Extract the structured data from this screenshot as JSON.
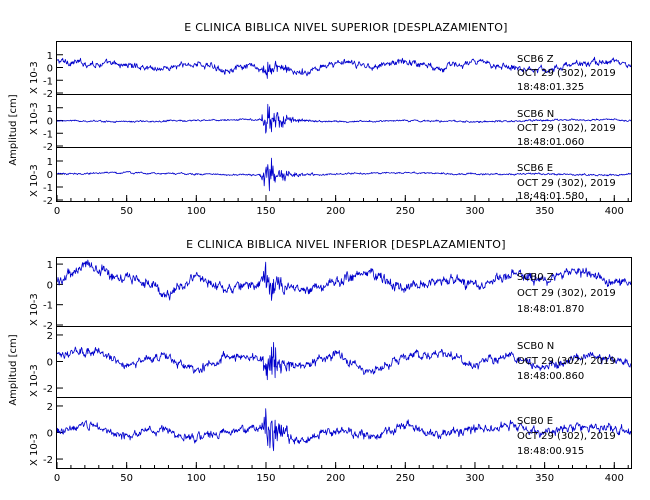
{
  "chart_data": [
    {
      "type": "line",
      "title": "E CLINICA BIBLICA NIVEL SUPERIOR [DESPLAZAMIENTO]",
      "ylabel": "Amplitud [cm]",
      "xlim": [
        0,
        412
      ],
      "xticks": [
        0,
        50,
        100,
        150,
        200,
        250,
        300,
        350,
        400
      ],
      "line_color": "#0000cc",
      "panels": [
        {
          "station": "SCB6   Z",
          "date": "OCT 29 (302), 2019",
          "time": "18:48:01.325",
          "scale": "X 10-3",
          "ylim": [
            -2,
            2
          ],
          "yticks": [
            1,
            0,
            -1,
            -2
          ],
          "style": "low-frequency",
          "event_peak": 0.9,
          "x": [
            0,
            25,
            50,
            75,
            100,
            125,
            140,
            150,
            160,
            175,
            200,
            225,
            250,
            275,
            300,
            325,
            350,
            375,
            400,
            412
          ],
          "y": [
            0.5,
            0.3,
            0.2,
            -0.1,
            0.3,
            -0.2,
            0.1,
            -0.3,
            0.2,
            -0.6,
            0.4,
            0.1,
            0.5,
            0.0,
            0.4,
            0.1,
            -0.2,
            0.3,
            0.5,
            0.1
          ]
        },
        {
          "station": "SCB6   N",
          "date": "OCT 29 (302), 2019",
          "time": "18:48:01.060",
          "scale": "X 10-3",
          "ylim": [
            -2,
            2
          ],
          "yticks": [
            1,
            0,
            -1,
            -2
          ],
          "style": "quiet",
          "event_peak": 1.8,
          "x": [
            0,
            50,
            100,
            150,
            200,
            250,
            300,
            350,
            400,
            412
          ],
          "y": [
            0.0,
            -0.1,
            0.0,
            0.1,
            -0.1,
            0.0,
            -0.1,
            0.0,
            0.1,
            0.0
          ]
        },
        {
          "station": "SCB6   E",
          "date": "OCT 29 (302), 2019",
          "time": "18:48:01.580",
          "scale": "X 10-3",
          "ylim": [
            -2,
            2
          ],
          "yticks": [
            1,
            0,
            -1,
            -2
          ],
          "style": "quiet",
          "event_peak": 1.8,
          "x": [
            0,
            50,
            100,
            150,
            200,
            250,
            300,
            350,
            400,
            412
          ],
          "y": [
            0.0,
            0.1,
            0.0,
            -0.1,
            0.0,
            0.1,
            0.0,
            0.0,
            -0.1,
            0.0
          ]
        }
      ]
    },
    {
      "type": "line",
      "title": "E CLINICA BIBLICA NIVEL INFERIOR [DESPLAZAMIENTO]",
      "ylabel": "Amplitud [cm]",
      "xlim": [
        0,
        412
      ],
      "xticks": [
        0,
        50,
        100,
        150,
        200,
        250,
        300,
        350,
        400
      ],
      "line_color": "#0000cc",
      "panels": [
        {
          "station": "SCB0   Z",
          "date": "OCT 29 (302), 2019",
          "time": "18:48:01.870",
          "scale": "X 10-3",
          "ylim": [
            -2,
            1.3
          ],
          "yticks": [
            1,
            0,
            -1,
            -2
          ],
          "style": "low-frequency",
          "event_peak": 1.2,
          "x": [
            0,
            20,
            40,
            60,
            80,
            100,
            125,
            150,
            175,
            200,
            225,
            250,
            275,
            300,
            325,
            350,
            375,
            400,
            412
          ],
          "y": [
            0.1,
            1.0,
            0.5,
            0.2,
            -0.5,
            0.4,
            -0.3,
            0.2,
            -0.4,
            0.1,
            0.6,
            -0.2,
            0.3,
            -0.1,
            0.5,
            0.2,
            0.6,
            0.1,
            0.0
          ]
        },
        {
          "station": "SCB0   N",
          "date": "OCT 29 (302), 2019",
          "time": "18:48:00.860",
          "scale": "X 10-3",
          "ylim": [
            -2.6,
            2.6
          ],
          "yticks": [
            2,
            0,
            -2
          ],
          "style": "mid",
          "event_peak": 2.0,
          "x": [
            0,
            25,
            50,
            75,
            100,
            125,
            150,
            175,
            200,
            225,
            250,
            275,
            300,
            325,
            350,
            375,
            400,
            412
          ],
          "y": [
            0.6,
            0.8,
            -0.2,
            0.4,
            -0.6,
            0.5,
            0.0,
            -0.4,
            0.6,
            -0.8,
            0.3,
            0.7,
            -0.3,
            0.5,
            -0.6,
            0.4,
            0.2,
            0.0
          ]
        },
        {
          "station": "SCB0   E",
          "date": "OCT 29 (302), 2019",
          "time": "18:48:00.915",
          "scale": "X 10-3",
          "ylim": [
            -2.6,
            2.6
          ],
          "yticks": [
            2,
            0,
            -2
          ],
          "style": "mid",
          "event_peak": 2.2,
          "x": [
            0,
            25,
            50,
            75,
            100,
            125,
            150,
            175,
            200,
            225,
            250,
            275,
            300,
            325,
            350,
            375,
            400,
            412
          ],
          "y": [
            0.0,
            0.6,
            -0.3,
            0.2,
            -0.5,
            0.1,
            0.3,
            -0.6,
            0.2,
            -0.3,
            0.5,
            -0.2,
            0.3,
            0.6,
            -0.1,
            0.5,
            0.2,
            0.0
          ]
        }
      ]
    }
  ]
}
